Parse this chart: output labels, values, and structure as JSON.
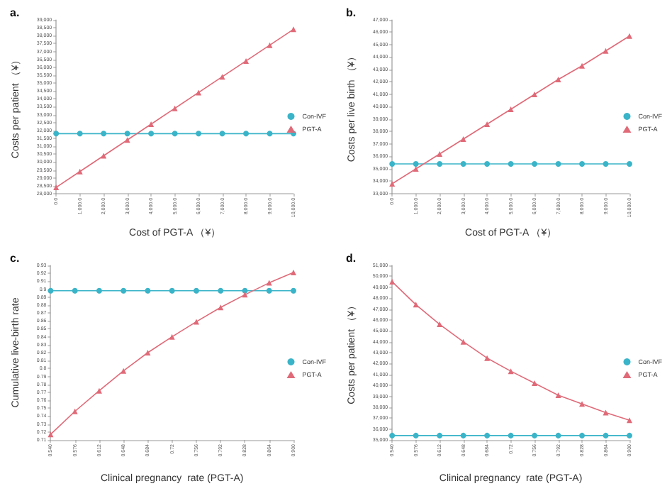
{
  "chart_data": [
    {
      "type": "line",
      "title": "a.",
      "xlabel": "Cost of PGT-A （¥）",
      "ylabel": "Costs per patient （¥）",
      "categories": [
        "0.0",
        "1,000.0",
        "2,000.0",
        "3,000.0",
        "4,000.0",
        "5,000.0",
        "6,000.0",
        "7,000.0",
        "8,000.0",
        "9,000.0",
        "10,000.0"
      ],
      "series": [
        {
          "name": "Con-IVF",
          "color": "#3ab4c8",
          "marker": "circle",
          "values": [
            31800,
            31800,
            31800,
            31800,
            31800,
            31800,
            31800,
            31800,
            31800,
            31800,
            31800
          ]
        },
        {
          "name": "PGT-A",
          "color": "#e06a78",
          "marker": "triangle",
          "values": [
            28400,
            29400,
            30400,
            31400,
            32400,
            33400,
            34400,
            35400,
            36400,
            37400,
            38400
          ]
        }
      ],
      "ylim": [
        28000,
        39000
      ],
      "yticks": [
        {
          "value": 28000,
          "label": "28,000"
        },
        {
          "value": 28500,
          "label": "28,500"
        },
        {
          "value": 29000,
          "label": "29,000"
        },
        {
          "value": 29500,
          "label": "29,500"
        },
        {
          "value": 30000,
          "label": "30,000"
        },
        {
          "value": 30500,
          "label": "30,500"
        },
        {
          "value": 31000,
          "label": "31,000"
        },
        {
          "value": 31500,
          "label": "31,500"
        },
        {
          "value": 32000,
          "label": "32,000"
        },
        {
          "value": 32500,
          "label": "32,500"
        },
        {
          "value": 33000,
          "label": "33,000"
        },
        {
          "value": 33500,
          "label": "33,500"
        },
        {
          "value": 34000,
          "label": "34,000"
        },
        {
          "value": 34500,
          "label": "34,500"
        },
        {
          "value": 35000,
          "label": "35,000"
        },
        {
          "value": 35500,
          "label": "35,500"
        },
        {
          "value": 36000,
          "label": "36,000"
        },
        {
          "value": 36500,
          "label": "36,500"
        },
        {
          "value": 37000,
          "label": "37,000"
        },
        {
          "value": 37500,
          "label": "37,500"
        },
        {
          "value": 38000,
          "label": "38,000"
        },
        {
          "value": 38500,
          "label": "38,500"
        },
        {
          "value": 39000,
          "label": "39,000"
        }
      ],
      "legend": "right",
      "grid": false
    },
    {
      "type": "line",
      "title": "b.",
      "xlabel": "Cost of PGT-A （¥）",
      "ylabel": "Costs per live birth （¥）",
      "categories": [
        "0.0",
        "1,000.0",
        "2,000.0",
        "3,000.0",
        "4,000.0",
        "5,000.0",
        "6,000.0",
        "7,000.0",
        "8,000.0",
        "9,000.0",
        "10,000.0"
      ],
      "series": [
        {
          "name": "Con-IVF",
          "color": "#3ab4c8",
          "marker": "circle",
          "values": [
            35400,
            35400,
            35400,
            35400,
            35400,
            35400,
            35400,
            35400,
            35400,
            35400,
            35400
          ]
        },
        {
          "name": "PGT-A",
          "color": "#e06a78",
          "marker": "triangle",
          "values": [
            33800,
            35000,
            36200,
            37400,
            38600,
            39800,
            41000,
            42200,
            43300,
            44500,
            45700
          ]
        }
      ],
      "ylim": [
        33000,
        47000
      ],
      "yticks": [
        {
          "value": 33000,
          "label": "33,000"
        },
        {
          "value": 34000,
          "label": "34,000"
        },
        {
          "value": 35000,
          "label": "35,000"
        },
        {
          "value": 36000,
          "label": "36,000"
        },
        {
          "value": 37000,
          "label": "37,000"
        },
        {
          "value": 38000,
          "label": "38,000"
        },
        {
          "value": 39000,
          "label": "39,000"
        },
        {
          "value": 40000,
          "label": "40,000"
        },
        {
          "value": 41000,
          "label": "41,000"
        },
        {
          "value": 42000,
          "label": "42,000"
        },
        {
          "value": 43000,
          "label": "43,000"
        },
        {
          "value": 44000,
          "label": "44,000"
        },
        {
          "value": 45000,
          "label": "45,000"
        },
        {
          "value": 46000,
          "label": "46,000"
        },
        {
          "value": 47000,
          "label": "47,000"
        }
      ],
      "legend": "right",
      "grid": false
    },
    {
      "type": "line",
      "title": "c.",
      "xlabel": "Clinical pregnancy  rate (PGT-A)",
      "ylabel": "Cumulative live-birth rate",
      "categories": [
        "0.540",
        "0.576",
        "0.612",
        "0.648",
        "0.684",
        "0.72",
        "0.756",
        "0.792",
        "0.828",
        "0.864",
        "0.900"
      ],
      "series": [
        {
          "name": "Con-IVF",
          "color": "#3ab4c8",
          "marker": "circle",
          "values": [
            0.898,
            0.898,
            0.898,
            0.898,
            0.898,
            0.898,
            0.898,
            0.898,
            0.898,
            0.898,
            0.898
          ]
        },
        {
          "name": "PGT-A",
          "color": "#e06a78",
          "marker": "triangle",
          "values": [
            0.717,
            0.746,
            0.772,
            0.797,
            0.82,
            0.84,
            0.859,
            0.877,
            0.893,
            0.908,
            0.921
          ]
        }
      ],
      "ylim": [
        0.71,
        0.93
      ],
      "yticks": [
        0.71,
        0.72,
        0.73,
        0.74,
        0.75,
        0.76,
        0.77,
        0.78,
        0.79,
        0.8,
        0.81,
        0.82,
        0.83,
        0.84,
        0.85,
        0.86,
        0.87,
        0.88,
        0.89,
        0.9,
        0.91,
        0.92,
        0.93
      ],
      "legend": "right",
      "grid": false
    },
    {
      "type": "line",
      "title": "d.",
      "xlabel": "Clinical pregnancy  rate (PGT-A)",
      "ylabel": "Costs per patient （¥）",
      "categories": [
        "0.540",
        "0.576",
        "0.612",
        "0.648",
        "0.684",
        "0.72",
        "0.756",
        "0.792",
        "0.828",
        "0.864",
        "0.900"
      ],
      "series": [
        {
          "name": "Con-IVF",
          "color": "#3ab4c8",
          "marker": "circle",
          "values": [
            35400,
            35400,
            35400,
            35400,
            35400,
            35400,
            35400,
            35400,
            35400,
            35400,
            35400
          ]
        },
        {
          "name": "PGT-A",
          "color": "#e06a78",
          "marker": "triangle",
          "values": [
            49500,
            47400,
            45600,
            44000,
            42500,
            41300,
            40200,
            39100,
            38300,
            37500,
            36800
          ]
        }
      ],
      "ylim": [
        35000,
        51000
      ],
      "yticks": [
        {
          "value": 35000,
          "label": "35,000"
        },
        {
          "value": 36000,
          "label": "36,000"
        },
        {
          "value": 37000,
          "label": "37,000"
        },
        {
          "value": 38000,
          "label": "38,000"
        },
        {
          "value": 39000,
          "label": "39,000"
        },
        {
          "value": 40000,
          "label": "40,000"
        },
        {
          "value": 41000,
          "label": "41,000"
        },
        {
          "value": 42000,
          "label": "42,000"
        },
        {
          "value": 43000,
          "label": "43,000"
        },
        {
          "value": 44000,
          "label": "44,000"
        },
        {
          "value": 45000,
          "label": "45,000"
        },
        {
          "value": 46000,
          "label": "46,000"
        },
        {
          "value": 47000,
          "label": "47,000"
        },
        {
          "value": 48000,
          "label": "48,000"
        },
        {
          "value": 49000,
          "label": "49,000"
        },
        {
          "value": 50000,
          "label": "50,000"
        },
        {
          "value": 51000,
          "label": "51,000"
        }
      ],
      "legend": "right",
      "grid": false
    }
  ]
}
